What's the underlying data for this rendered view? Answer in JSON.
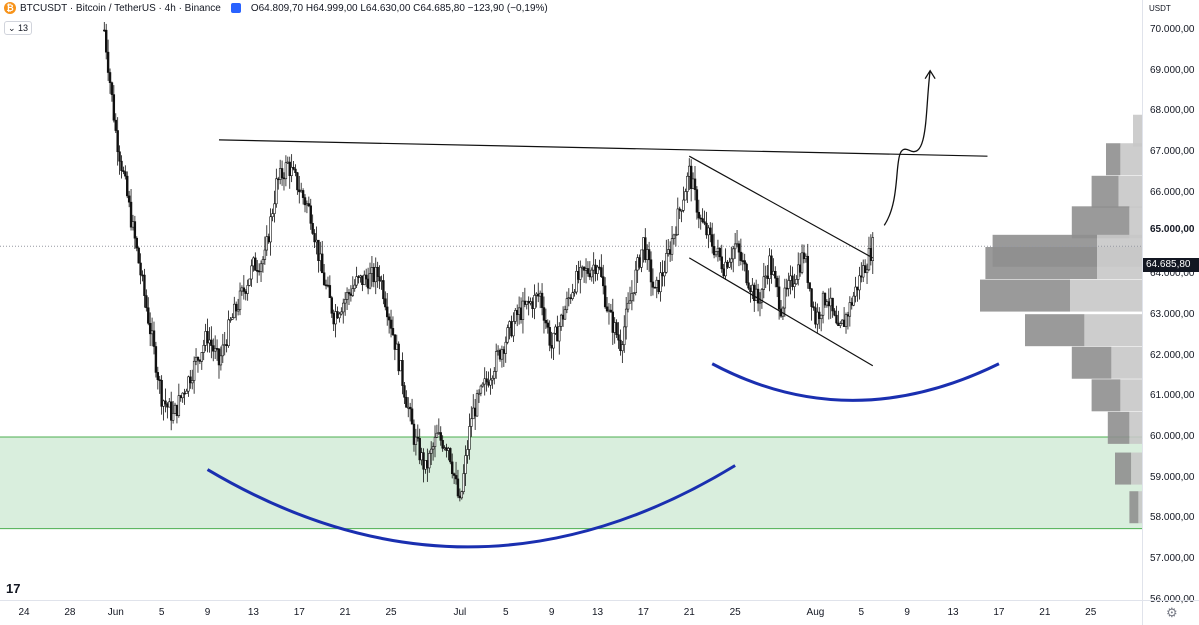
{
  "header": {
    "symbol": "BTCUSDT · Bitcoin / TetherUS · 4h · Binance",
    "coin_glyph": "₿",
    "ohlc": "O64.809,70  H64.999,00  L64.630,00  C64.685,80  −123,90 (−0,19%)",
    "interval_badge": "⌄ 13"
  },
  "price_axis": {
    "currency": "USDT",
    "ticks": [
      "70.000,00",
      "69.000,00",
      "68.000,00",
      "67.000,00",
      "66.000,00",
      "65.000,00",
      "64.000,00",
      "63.000,00",
      "62.000,00",
      "61.000,00",
      "60.000,00",
      "59.000,00",
      "58.000,00",
      "57.000,00",
      "56.000,00"
    ],
    "bold_tick": "65.000,00",
    "current_price": "64.685,80"
  },
  "time_axis": {
    "labels": [
      "24",
      "28",
      "Jun",
      "5",
      "9",
      "13",
      "17",
      "21",
      "25",
      "Jul",
      "5",
      "9",
      "13",
      "17",
      "21",
      "25",
      "Aug",
      "5",
      "9",
      "13",
      "17",
      "21",
      "25"
    ]
  },
  "branding": {
    "logo": "17"
  },
  "settings_icon": "⚙",
  "colors": {
    "candle_up": "#111111",
    "candle_down": "#111111",
    "support_zone": "#d9eedd",
    "support_border": "#4caf50",
    "cup_curves": "#1a2fb0",
    "profile_dark": "#8f8f8f",
    "profile_light": "#c8c8c8"
  },
  "chart_data": {
    "type": "candlestick",
    "interval": "4h",
    "y_range": [
      55800,
      70600
    ],
    "approx_close_path": [
      [
        "2024-05-31",
        70000
      ],
      [
        "2024-06-01",
        67500
      ],
      [
        "2024-06-03",
        64300
      ],
      [
        "2024-06-05",
        61000
      ],
      [
        "2024-06-06",
        60500
      ],
      [
        "2024-06-07",
        61200
      ],
      [
        "2024-06-09",
        62500
      ],
      [
        "2024-06-10",
        61800
      ],
      [
        "2024-06-11",
        62800
      ],
      [
        "2024-06-13",
        64200
      ],
      [
        "2024-06-14",
        64400
      ],
      [
        "2024-06-15",
        66200
      ],
      [
        "2024-06-16",
        66700
      ],
      [
        "2024-06-18",
        65500
      ],
      [
        "2024-06-19",
        64000
      ],
      [
        "2024-06-20",
        63000
      ],
      [
        "2024-06-22",
        63800
      ],
      [
        "2024-06-24",
        64000
      ],
      [
        "2024-06-25",
        62800
      ],
      [
        "2024-06-27",
        60000
      ],
      [
        "2024-06-28",
        59200
      ],
      [
        "2024-06-29",
        60000
      ],
      [
        "2024-06-30",
        59800
      ],
      [
        "2024-07-01",
        58300
      ],
      [
        "2024-07-02",
        60500
      ],
      [
        "2024-07-04",
        61800
      ],
      [
        "2024-07-06",
        63000
      ],
      [
        "2024-07-08",
        63500
      ],
      [
        "2024-07-09",
        62200
      ],
      [
        "2024-07-11",
        63800
      ],
      [
        "2024-07-13",
        64300
      ],
      [
        "2024-07-14",
        63000
      ],
      [
        "2024-07-15",
        62300
      ],
      [
        "2024-07-17",
        64800
      ],
      [
        "2024-07-18",
        63500
      ],
      [
        "2024-07-19",
        64300
      ],
      [
        "2024-07-21",
        66500
      ],
      [
        "2024-07-22",
        65300
      ],
      [
        "2024-07-24",
        64200
      ],
      [
        "2024-07-25",
        64700
      ],
      [
        "2024-07-27",
        63300
      ],
      [
        "2024-07-28",
        64300
      ],
      [
        "2024-07-29",
        63200
      ],
      [
        "2024-07-31",
        64500
      ],
      [
        "2024-08-01",
        62900
      ],
      [
        "2024-08-02",
        63500
      ],
      [
        "2024-08-03",
        62500
      ],
      [
        "2024-08-04",
        63200
      ],
      [
        "2024-08-05",
        64000
      ],
      [
        "2024-08-06",
        64685.8
      ]
    ],
    "support_zone": [
      57750,
      60000
    ],
    "annotations": [
      {
        "type": "resistance_line",
        "from": [
          "2024-06-10",
          67300
        ],
        "to": [
          "2024-08-16",
          66900
        ]
      },
      {
        "type": "channel_upper",
        "from": [
          "2024-07-21",
          66900
        ],
        "to": [
          "2024-08-06",
          64400
        ]
      },
      {
        "type": "channel_lower",
        "from": [
          "2024-07-21",
          64400
        ],
        "to": [
          "2024-08-06",
          61750
        ]
      },
      {
        "type": "projection_arrow",
        "from": [
          "2024-08-07",
          65200
        ],
        "to": [
          "2024-08-11",
          69000
        ]
      },
      {
        "type": "cup_curve_large",
        "from": [
          "2024-06-09",
          59200
        ],
        "bottom": [
          "2024-07-02",
          57300
        ],
        "to": [
          "2024-07-25",
          59300
        ]
      },
      {
        "type": "cup_curve_small",
        "from": [
          "2024-07-23",
          61800
        ],
        "bottom": [
          "2024-08-04",
          60900
        ],
        "to": [
          "2024-08-17",
          61800
        ]
      }
    ],
    "volume_profile": [
      {
        "price": 67500,
        "dark": 0.0,
        "light": 0.05
      },
      {
        "price": 66800,
        "dark": 0.08,
        "light": 0.12
      },
      {
        "price": 66000,
        "dark": 0.15,
        "light": 0.13
      },
      {
        "price": 65250,
        "dark": 0.32,
        "light": 0.07
      },
      {
        "price": 64550,
        "dark": 0.58,
        "light": 0.25
      },
      {
        "price": 64250,
        "dark": 0.62,
        "light": 0.25
      },
      {
        "price": 63450,
        "dark": 0.5,
        "light": 0.4
      },
      {
        "price": 62600,
        "dark": 0.33,
        "light": 0.32
      },
      {
        "price": 61800,
        "dark": 0.22,
        "light": 0.17
      },
      {
        "price": 61000,
        "dark": 0.16,
        "light": 0.12
      },
      {
        "price": 60200,
        "dark": 0.12,
        "light": 0.07
      },
      {
        "price": 59200,
        "dark": 0.09,
        "light": 0.06
      },
      {
        "price": 58250,
        "dark": 0.05,
        "light": 0.02
      }
    ]
  }
}
